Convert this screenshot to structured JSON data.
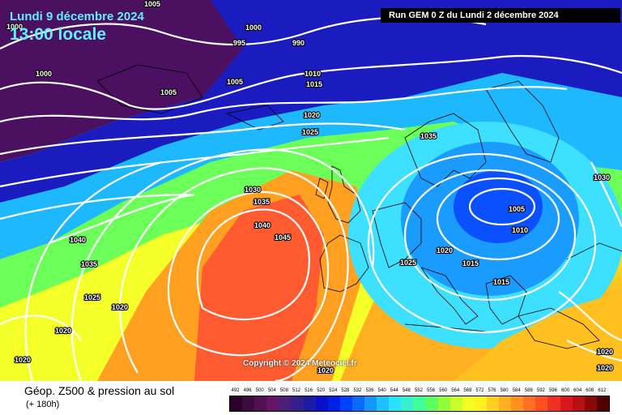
{
  "header": {
    "date_label": "Lundi 9 décembre 2024",
    "time_label": "13:00 locale",
    "run_label": "Run GEM 0 Z du Lundi 2 décembre 2024"
  },
  "copyright": "Copyright © 2024 Meteociel.fr",
  "footer": {
    "title": "Géop. Z500 & pression au sol",
    "subtitle": "(+ 180h)"
  },
  "legend": {
    "values": [
      "492",
      "496",
      "500",
      "504",
      "508",
      "512",
      "516",
      "520",
      "524",
      "528",
      "532",
      "536",
      "540",
      "544",
      "548",
      "552",
      "556",
      "560",
      "564",
      "568",
      "572",
      "576",
      "580",
      "584",
      "588",
      "592",
      "596",
      "600",
      "604",
      "608",
      "612"
    ],
    "colors": [
      "#2a0028",
      "#3d0a3d",
      "#520f52",
      "#661466",
      "#4b1f78",
      "#33208c",
      "#1a1ca6",
      "#0a0fc8",
      "#0020e6",
      "#0040ff",
      "#0a6aff",
      "#1496ff",
      "#1ec0ff",
      "#28e0ff",
      "#34f0d0",
      "#40ff9a",
      "#5cff5c",
      "#90ff3a",
      "#c8ff28",
      "#f0ff20",
      "#fff020",
      "#ffd020",
      "#ffb020",
      "#ff9020",
      "#ff7020",
      "#ff5020",
      "#f03020",
      "#d81818",
      "#b81010",
      "#8c0808",
      "#500000"
    ]
  },
  "isobar_labels": [
    "1005",
    "1000",
    "1000",
    "995",
    "990",
    "1000",
    "1005",
    "1005",
    "1010",
    "1015",
    "1020",
    "1025",
    "1035",
    "1030",
    "1035",
    "1040",
    "1045",
    "1040",
    "1035",
    "1025",
    "1020",
    "1020",
    "1020",
    "1025",
    "1020",
    "1015",
    "1005",
    "1010",
    "1015",
    "1030",
    "1020",
    "1020",
    "1020"
  ]
}
